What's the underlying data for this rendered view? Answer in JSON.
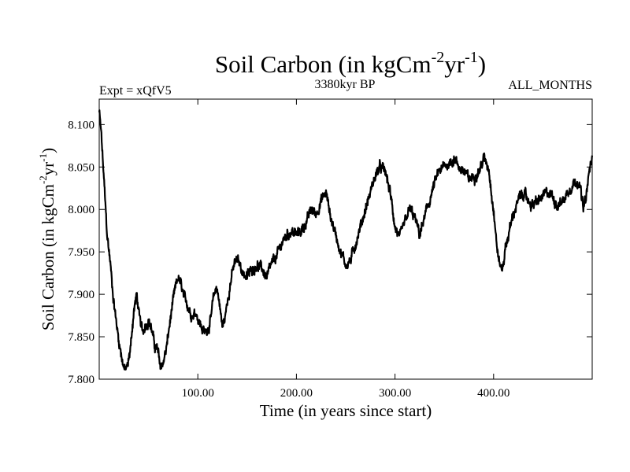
{
  "chart_data": {
    "type": "line",
    "title": {
      "main": "Soil Carbon (in kgCm",
      "sup1": "-2",
      "mid": "yr",
      "sup2": "-1",
      "end": ")"
    },
    "header": {
      "left": "Expt = xQfV5",
      "center": "3380kyr BP",
      "right": "ALL_MONTHS"
    },
    "xlabel": "Time (in years since start)",
    "ylabel": {
      "main": "Soil Carbon (in kgCm",
      "sup1": "-2",
      "mid": "yr",
      "sup2": "-1",
      "end": ")"
    },
    "xlim": [
      0,
      500
    ],
    "ylim": [
      7.8,
      8.13
    ],
    "xticks": [
      100,
      200,
      300,
      400
    ],
    "xtick_labels": [
      "100.00",
      "200.00",
      "300.00",
      "400.00"
    ],
    "yticks": [
      7.8,
      7.85,
      7.9,
      7.95,
      8.0,
      8.05,
      8.1
    ],
    "ytick_labels": [
      "7.800",
      "7.850",
      "7.900",
      "7.950",
      "8.000",
      "8.050",
      "8.100"
    ],
    "series": [
      {
        "name": "Soil Carbon",
        "color": "#000000",
        "anchors_x": [
          0,
          2,
          5,
          8,
          11,
          14,
          17,
          20,
          23,
          26,
          29,
          32,
          35,
          38,
          41,
          44,
          47,
          50,
          53,
          56,
          59,
          62,
          65,
          68,
          71,
          74,
          77,
          80,
          83,
          86,
          89,
          92,
          95,
          98,
          101,
          104,
          107,
          110,
          113,
          116,
          119,
          122,
          125,
          128,
          131,
          134,
          137,
          140,
          143,
          146,
          150,
          155,
          160,
          165,
          170,
          175,
          180,
          185,
          190,
          195,
          200,
          205,
          210,
          215,
          220,
          225,
          230,
          235,
          240,
          245,
          250,
          255,
          260,
          265,
          270,
          275,
          280,
          285,
          290,
          295,
          300,
          305,
          310,
          315,
          320,
          325,
          330,
          335,
          340,
          345,
          350,
          355,
          360,
          365,
          370,
          375,
          380,
          385,
          390,
          395,
          400,
          403,
          406,
          409,
          412,
          416,
          420,
          425,
          430,
          435,
          440,
          445,
          450,
          455,
          460,
          465,
          470,
          475,
          480,
          485,
          488,
          491,
          494,
          497,
          500
        ],
        "anchors_y": [
          8.115,
          8.09,
          8.03,
          7.97,
          7.94,
          7.9,
          7.87,
          7.845,
          7.825,
          7.81,
          7.815,
          7.84,
          7.88,
          7.9,
          7.87,
          7.855,
          7.865,
          7.87,
          7.86,
          7.84,
          7.835,
          7.815,
          7.82,
          7.835,
          7.86,
          7.885,
          7.905,
          7.92,
          7.91,
          7.895,
          7.89,
          7.88,
          7.875,
          7.88,
          7.87,
          7.86,
          7.855,
          7.86,
          7.87,
          7.895,
          7.91,
          7.89,
          7.86,
          7.875,
          7.9,
          7.92,
          7.935,
          7.94,
          7.935,
          7.925,
          7.92,
          7.93,
          7.935,
          7.93,
          7.92,
          7.935,
          7.945,
          7.96,
          7.97,
          7.975,
          7.97,
          7.975,
          7.985,
          8.0,
          7.995,
          8.01,
          8.02,
          7.99,
          7.97,
          7.95,
          7.935,
          7.94,
          7.96,
          7.98,
          8.0,
          8.02,
          8.04,
          8.05,
          8.045,
          8.02,
          7.98,
          7.965,
          7.985,
          8.0,
          7.99,
          7.97,
          7.99,
          8.01,
          8.03,
          8.045,
          8.05,
          8.055,
          8.06,
          8.05,
          8.045,
          8.035,
          8.04,
          8.045,
          8.06,
          8.05,
          8.0,
          7.96,
          7.935,
          7.93,
          7.955,
          7.975,
          7.995,
          8.01,
          8.02,
          8.01,
          8.005,
          8.01,
          8.015,
          8.02,
          8.015,
          8.005,
          8.01,
          8.02,
          8.03,
          8.035,
          8.025,
          8.0,
          8.015,
          8.045,
          8.06
        ]
      }
    ]
  }
}
